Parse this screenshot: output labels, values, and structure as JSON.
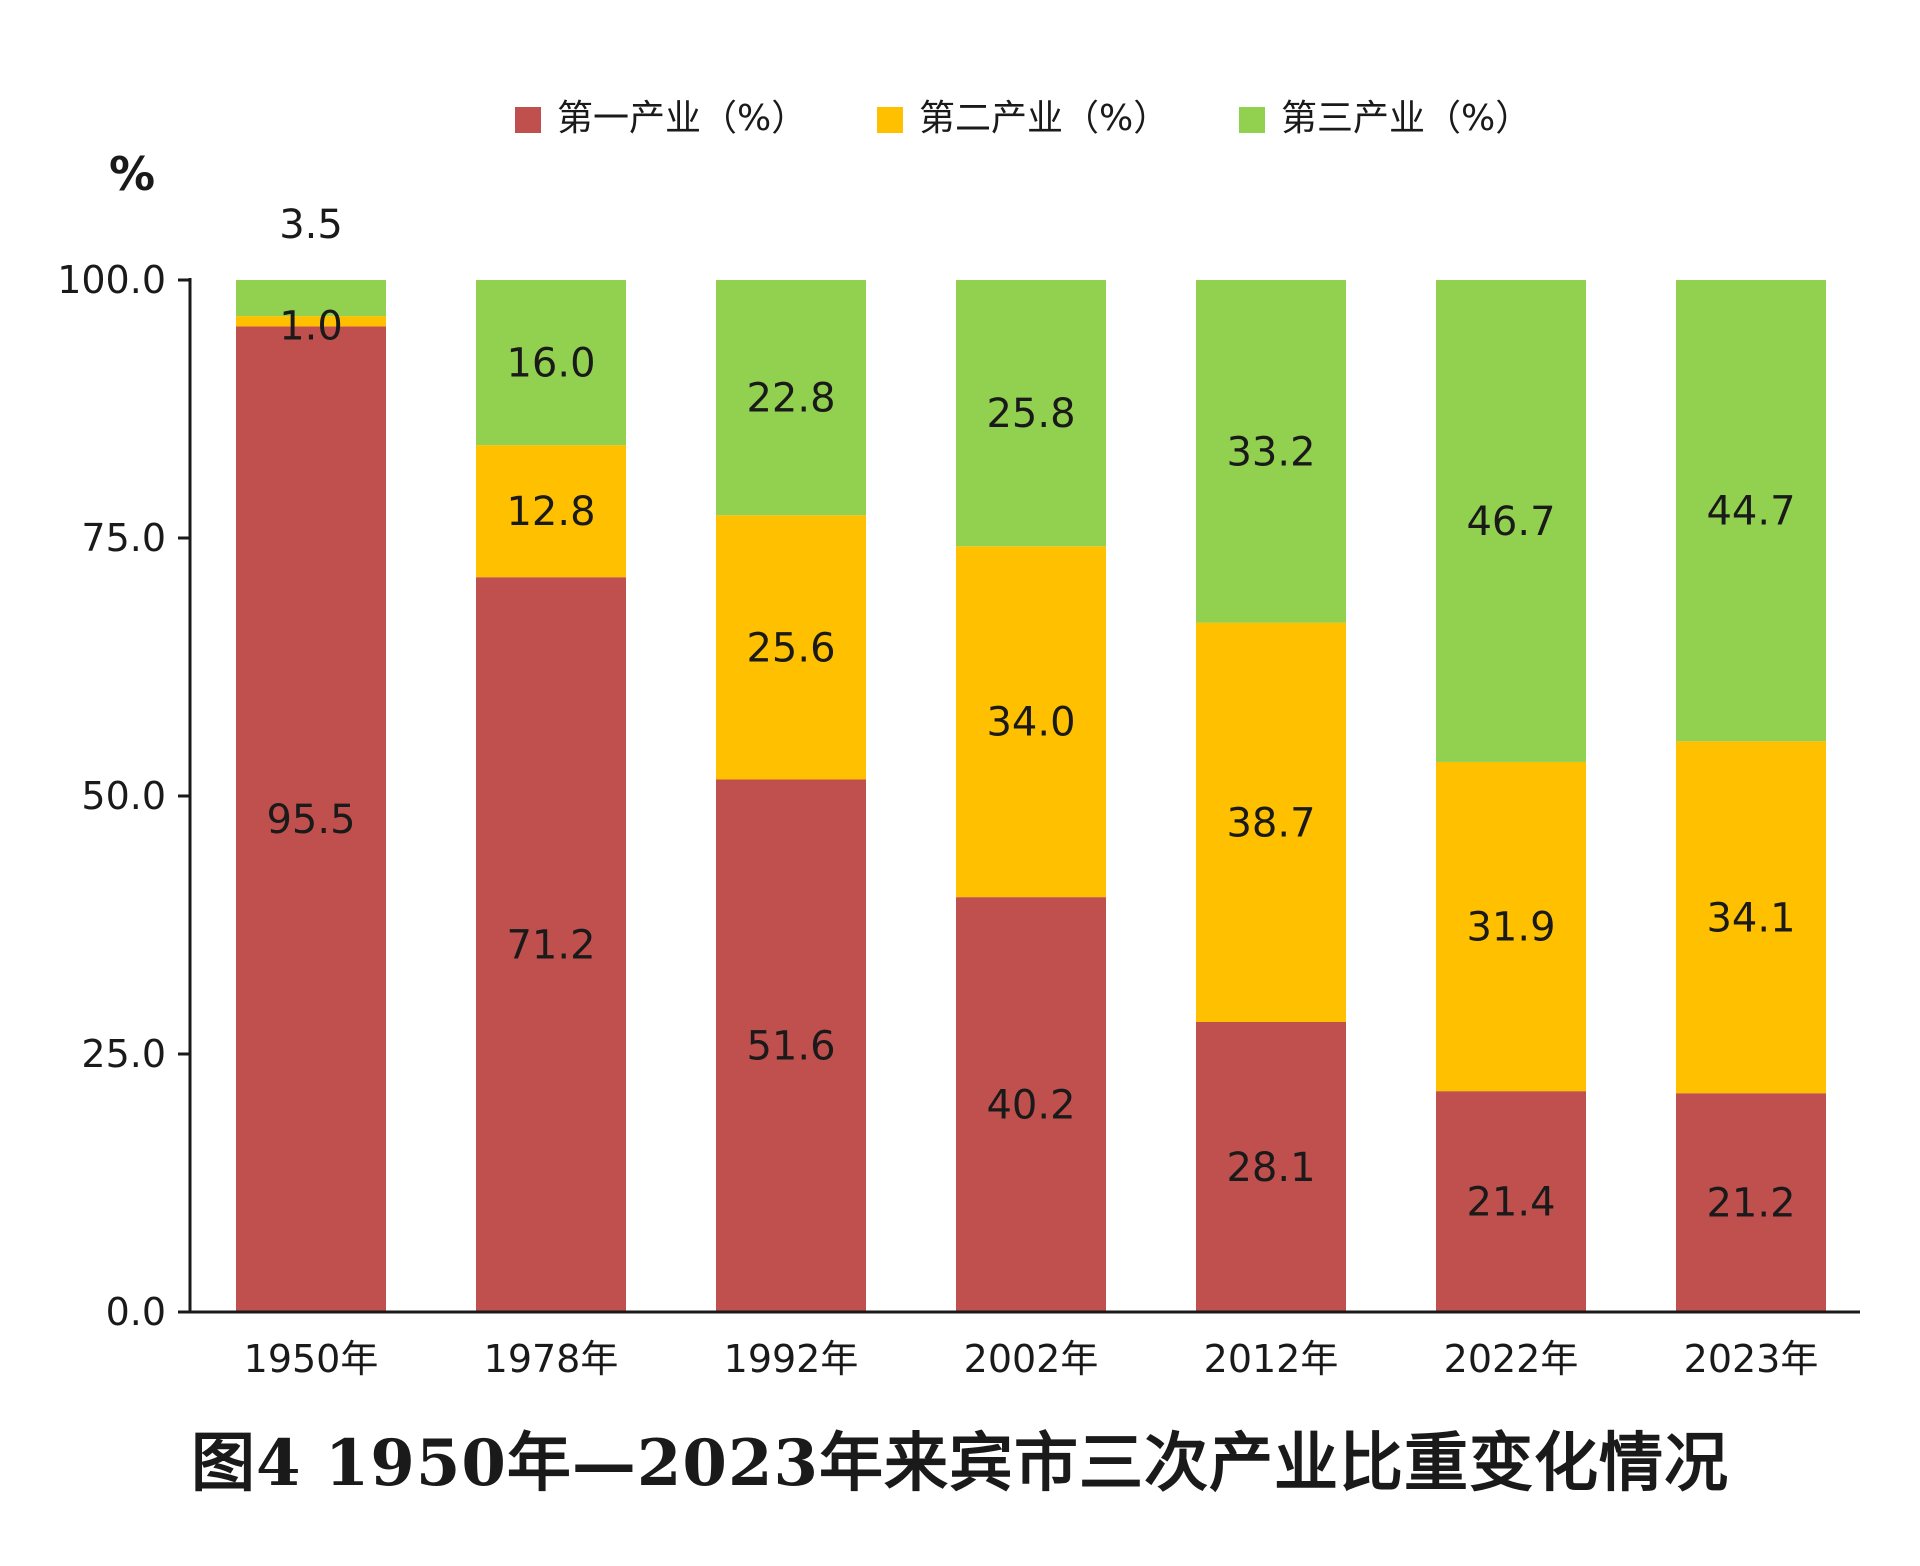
{
  "chart_data": {
    "type": "bar",
    "stacked": true,
    "title": "图4 1950年—2023年来宾市三次产业比重变化情况",
    "ylabel": "%",
    "xlabel": "",
    "ylim": [
      0,
      100
    ],
    "yticks": [
      "0.0",
      "25.0",
      "50.0",
      "75.0",
      "100.0"
    ],
    "categories": [
      "1950年",
      "1978年",
      "1992年",
      "2002年",
      "2012年",
      "2022年",
      "2023年"
    ],
    "legend_position": "top",
    "grid": false,
    "series": [
      {
        "name": "第一产业（%）",
        "color": "#C0504D",
        "values": [
          95.5,
          71.2,
          51.6,
          40.2,
          28.1,
          21.4,
          21.2
        ]
      },
      {
        "name": "第二产业（%）",
        "color": "#FFC000",
        "values": [
          1.0,
          12.8,
          25.6,
          34.0,
          38.7,
          31.9,
          34.1
        ]
      },
      {
        "name": "第三产业（%）",
        "color": "#92D050",
        "values": [
          3.5,
          16.0,
          22.8,
          25.8,
          33.2,
          46.7,
          44.7
        ]
      }
    ],
    "data_labels": [
      [
        "95.5",
        "71.2",
        "51.6",
        "40.2",
        "28.1",
        "21.4",
        "21.2"
      ],
      [
        "1.0",
        "12.8",
        "25.6",
        "34.0",
        "38.7",
        "31.9",
        "34.1"
      ],
      [
        "3.5",
        "16.0",
        "22.8",
        "25.8",
        "33.2",
        "46.7",
        "44.7"
      ]
    ]
  }
}
